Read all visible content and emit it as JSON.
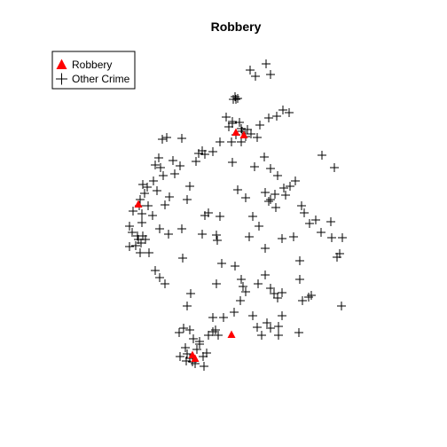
{
  "title": "Robbery",
  "legend": [
    {
      "label": "Robbery",
      "symbol": "triangle",
      "color": "#ff0000"
    },
    {
      "label": "Other Crime",
      "symbol": "cross",
      "color": "#000000"
    }
  ],
  "colors": {
    "robbery": "#ff0000",
    "other": "#000000",
    "background": "#ffffff"
  },
  "chart_data": {
    "type": "scatter",
    "title": "Robbery",
    "grid": false,
    "legend_position": "top-left",
    "series": [
      {
        "name": "Other Crime",
        "symbol": "cross",
        "points": [
          [
            282,
            79
          ],
          [
            300,
            72
          ],
          [
            305,
            84
          ],
          [
            288,
            86
          ],
          [
            265,
            109
          ],
          [
            263,
            112
          ],
          [
            268,
            111
          ],
          [
            255,
            132
          ],
          [
            262,
            137
          ],
          [
            270,
            138
          ],
          [
            258,
            143
          ],
          [
            273,
            148
          ],
          [
            266,
            152
          ],
          [
            279,
            146
          ],
          [
            261,
            160
          ],
          [
            272,
            160
          ],
          [
            248,
            160
          ],
          [
            290,
            155
          ],
          [
            319,
            124
          ],
          [
            312,
            131
          ],
          [
            303,
            133
          ],
          [
            326,
            127
          ],
          [
            293,
            141
          ],
          [
            283,
            151
          ],
          [
            188,
            155
          ],
          [
            183,
            157
          ],
          [
            205,
            156
          ],
          [
            228,
            170
          ],
          [
            224,
            173
          ],
          [
            231,
            174
          ],
          [
            240,
            171
          ],
          [
            221,
            182
          ],
          [
            195,
            181
          ],
          [
            179,
            178
          ],
          [
            175,
            186
          ],
          [
            181,
            189
          ],
          [
            203,
            187
          ],
          [
            184,
            198
          ],
          [
            197,
            196
          ],
          [
            262,
            183
          ],
          [
            287,
            188
          ],
          [
            298,
            177
          ],
          [
            305,
            190
          ],
          [
            363,
            175
          ],
          [
            377,
            189
          ],
          [
            333,
            204
          ],
          [
            327,
            210
          ],
          [
            313,
            198
          ],
          [
            320,
            212
          ],
          [
            322,
            220
          ],
          [
            299,
            217
          ],
          [
            305,
            225
          ],
          [
            311,
            234
          ],
          [
            268,
            214
          ],
          [
            277,
            223
          ],
          [
            214,
            210
          ],
          [
            211,
            225
          ],
          [
            191,
            222
          ],
          [
            186,
            231
          ],
          [
            173,
            204
          ],
          [
            177,
            215
          ],
          [
            166,
            211
          ],
          [
            161,
            208
          ],
          [
            163,
            218
          ],
          [
            158,
            225
          ],
          [
            157,
            232
          ],
          [
            160,
            241
          ],
          [
            150,
            238
          ],
          [
            167,
            232
          ],
          [
            172,
            243
          ],
          [
            231,
            243
          ],
          [
            235,
            240
          ],
          [
            248,
            244
          ],
          [
            285,
            244
          ],
          [
            292,
            255
          ],
          [
            340,
            232
          ],
          [
            343,
            240
          ],
          [
            349,
            252
          ],
          [
            356,
            248
          ],
          [
            373,
            250
          ],
          [
            362,
            262
          ],
          [
            386,
            268
          ],
          [
            374,
            268
          ],
          [
            331,
            267
          ],
          [
            318,
            269
          ],
          [
            299,
            280
          ],
          [
            281,
            267
          ],
          [
            244,
            265
          ],
          [
            228,
            264
          ],
          [
            205,
            258
          ],
          [
            190,
            264
          ],
          [
            180,
            258
          ],
          [
            160,
            251
          ],
          [
            146,
            255
          ],
          [
            149,
            262
          ],
          [
            155,
            266
          ],
          [
            161,
            266
          ],
          [
            164,
            270
          ],
          [
            153,
            277
          ],
          [
            158,
            285
          ],
          [
            146,
            278
          ],
          [
            168,
            285
          ],
          [
            175,
            305
          ],
          [
            180,
            313
          ],
          [
            186,
            320
          ],
          [
            206,
            291
          ],
          [
            245,
            271
          ],
          [
            383,
            286
          ],
          [
            380,
            290
          ],
          [
            250,
            297
          ],
          [
            265,
            300
          ],
          [
            272,
            315
          ],
          [
            274,
            323
          ],
          [
            277,
            329
          ],
          [
            291,
            320
          ],
          [
            299,
            310
          ],
          [
            305,
            325
          ],
          [
            309,
            331
          ],
          [
            313,
            336
          ],
          [
            318,
            330
          ],
          [
            338,
            294
          ],
          [
            338,
            315
          ],
          [
            348,
            335
          ],
          [
            341,
            339
          ],
          [
            351,
            333
          ],
          [
            385,
            345
          ],
          [
            271,
            339
          ],
          [
            244,
            320
          ],
          [
            215,
            331
          ],
          [
            211,
            345
          ],
          [
            240,
            358
          ],
          [
            252,
            358
          ],
          [
            264,
            352
          ],
          [
            285,
            356
          ],
          [
            290,
            369
          ],
          [
            295,
            378
          ],
          [
            301,
            364
          ],
          [
            318,
            356
          ],
          [
            314,
            368
          ],
          [
            305,
            370
          ],
          [
            314,
            378
          ],
          [
            337,
            375
          ],
          [
            207,
            370
          ],
          [
            202,
            375
          ],
          [
            214,
            372
          ],
          [
            218,
            382
          ],
          [
            235,
            378
          ],
          [
            240,
            374
          ],
          [
            243,
            372
          ],
          [
            246,
            378
          ],
          [
            225,
            388
          ],
          [
            222,
            394
          ],
          [
            209,
            392
          ],
          [
            211,
            399
          ],
          [
            214,
            404
          ],
          [
            220,
            410
          ],
          [
            217,
            408
          ],
          [
            229,
            402
          ],
          [
            233,
            398
          ],
          [
            230,
            413
          ],
          [
            210,
            407
          ],
          [
            203,
            402
          ],
          [
            225,
            385
          ],
          [
            266,
            112
          ],
          [
            272,
            145
          ],
          [
            262,
            139
          ],
          [
            277,
            154
          ],
          [
            310,
            219
          ],
          [
            303,
            227
          ],
          [
            156,
            270
          ],
          [
            159,
            274
          ]
        ]
      },
      {
        "name": "Robbery",
        "symbol": "triangle",
        "points": [
          [
            266,
            149
          ],
          [
            275,
            152
          ],
          [
            156,
            230
          ],
          [
            261,
            377
          ],
          [
            217,
            400
          ],
          [
            220,
            404
          ]
        ]
      }
    ]
  }
}
